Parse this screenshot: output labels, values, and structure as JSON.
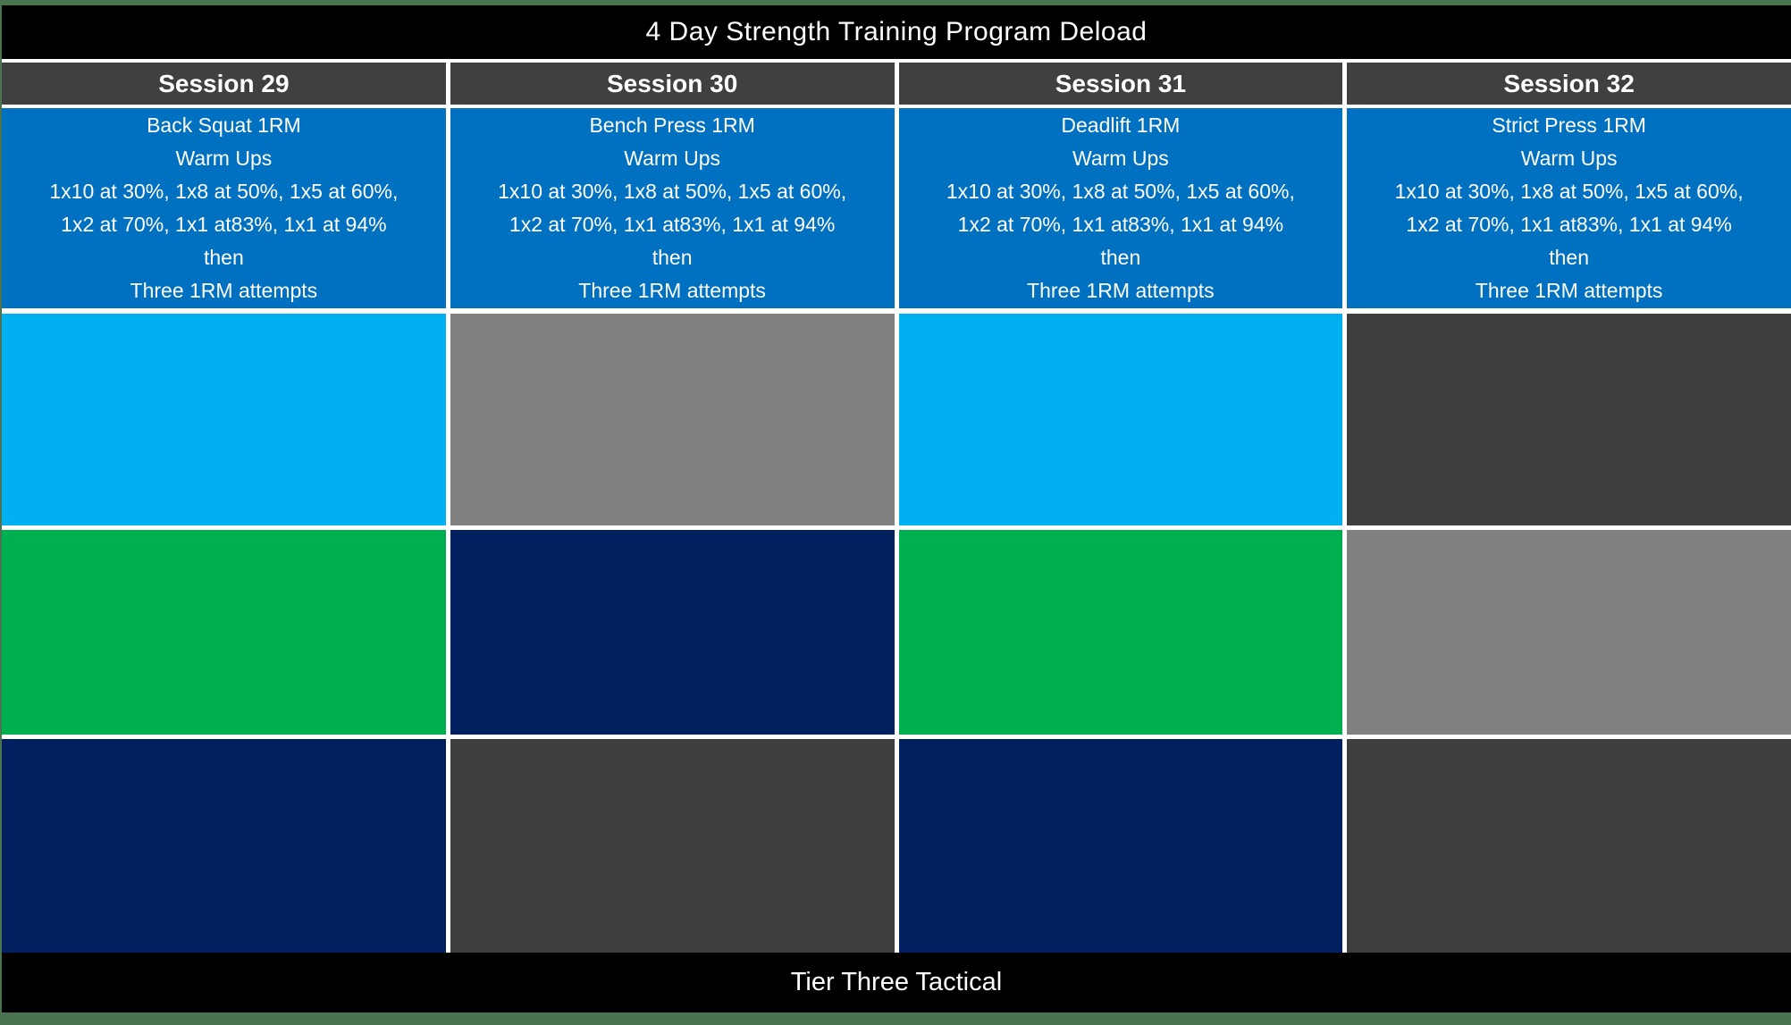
{
  "title": "4 Day Strength Training Program Deload",
  "footer": "Tier Three Tactical",
  "colors": {
    "frame_green": "#4A7450",
    "bar_black": "#000000",
    "header_gray": "#404040",
    "accent_blue": "#0070C0",
    "cyan": "#00B0F0",
    "green": "#00B050",
    "navy": "#002060",
    "gray": "#808080",
    "dark_gray": "#3F3F3F",
    "separator_white": "#FFFFFF"
  },
  "sessions": [
    {
      "label": "Session 29",
      "warmup_lines": [
        "Back Squat 1RM",
        "Warm Ups",
        "1x10 at 30%, 1x8 at 50%, 1x5 at 60%,",
        "1x2 at 70%, 1x1 at83%, 1x1 at 94%",
        "then",
        "Three 1RM attempts"
      ]
    },
    {
      "label": "Session 30",
      "warmup_lines": [
        "Bench Press 1RM",
        "Warm Ups",
        "1x10 at 30%, 1x8 at 50%, 1x5 at 60%,",
        "1x2 at 70%, 1x1 at83%, 1x1 at 94%",
        "then",
        "Three 1RM attempts"
      ]
    },
    {
      "label": "Session 31",
      "warmup_lines": [
        "Deadlift 1RM",
        "Warm Ups",
        "1x10 at 30%, 1x8 at 50%, 1x5 at 60%,",
        "1x2 at 70%, 1x1 at83%, 1x1 at 94%",
        "then",
        "Three 1RM attempts"
      ]
    },
    {
      "label": "Session 32",
      "warmup_lines": [
        "Strict Press 1RM",
        "Warm Ups",
        "1x10 at 30%, 1x8 at 50%, 1x5 at 60%,",
        "1x2 at 70%, 1x1 at83%, 1x1 at 94%",
        "then",
        "Three 1RM attempts"
      ]
    }
  ],
  "grid": {
    "rows": [
      [
        "cyan",
        "gray",
        "cyan",
        "dark_gray"
      ],
      [
        "green",
        "navy",
        "green",
        "gray"
      ],
      [
        "navy",
        "dark_gray",
        "navy",
        "dark_gray"
      ]
    ]
  }
}
